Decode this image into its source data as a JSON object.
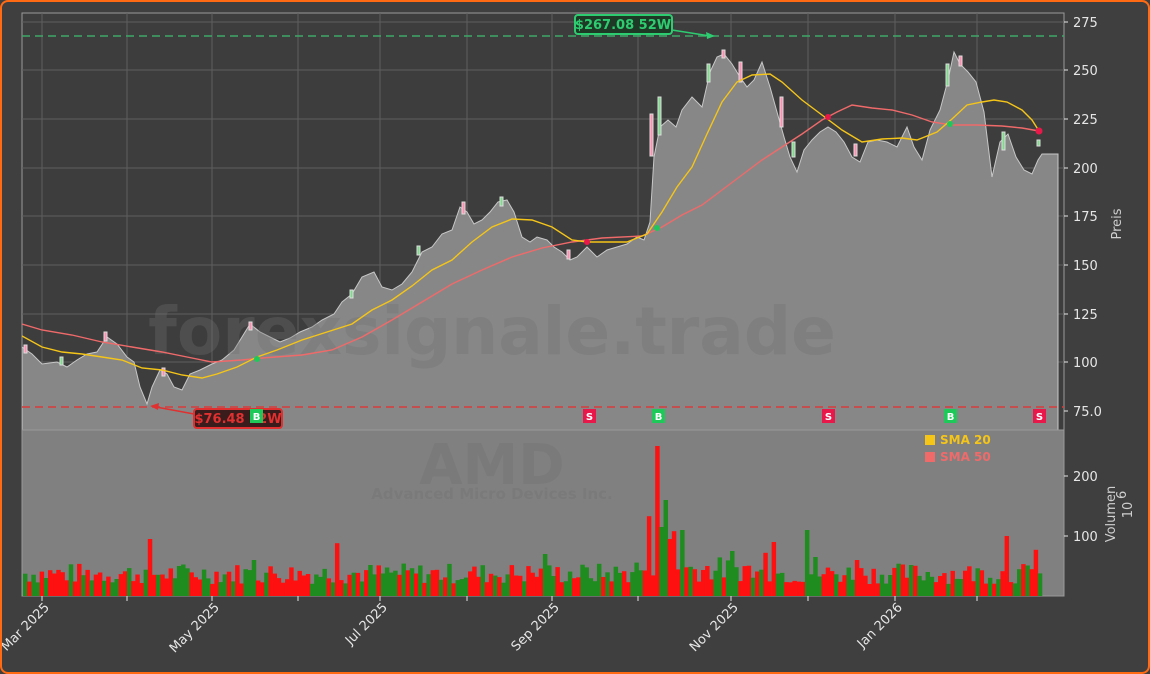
{
  "chart_data": [
    {
      "type": "candlestick+line",
      "panel": "price",
      "ylabel": "Preis",
      "ylim": [
        70,
        278
      ],
      "yticks": [
        "275",
        "250",
        "225",
        "200",
        "175",
        "150",
        "125",
        "100",
        "75.0"
      ],
      "xticks": [
        "Mar 2025",
        "May 2025",
        "Jul 2025",
        "Sep 2025",
        "Nov 2025",
        "Jan 2026"
      ],
      "grid": true,
      "annotations": [
        {
          "label": "$267.08 52W",
          "type": "52w-high",
          "value": 267.08,
          "color": "#2ecc71"
        },
        {
          "label": "$76.48 52W",
          "type": "52w-low",
          "value": 76.48,
          "color": "#e03030"
        }
      ],
      "signals": [
        {
          "label": "B",
          "position": "May 2025",
          "type": "buy"
        },
        {
          "label": "S",
          "position": "Sep 2025",
          "type": "sell"
        },
        {
          "label": "B",
          "position": "Oct 2025",
          "type": "buy"
        },
        {
          "label": "S",
          "position": "Dec 2025",
          "type": "sell"
        },
        {
          "label": "B",
          "position": "Jan 2026",
          "type": "buy"
        },
        {
          "label": "S",
          "position": "Feb 2026",
          "type": "sell"
        }
      ],
      "series": [
        {
          "name": "Close (approx.)",
          "x": [
            "2025-02-18",
            "2025-03-01",
            "2025-03-15",
            "2025-04-01",
            "2025-04-08",
            "2025-04-21",
            "2025-05-01",
            "2025-05-15",
            "2025-06-01",
            "2025-06-15",
            "2025-07-01",
            "2025-07-15",
            "2025-08-01",
            "2025-08-15",
            "2025-09-01",
            "2025-09-15",
            "2025-10-01",
            "2025-10-08",
            "2025-10-15",
            "2025-10-29",
            "2025-11-05",
            "2025-11-20",
            "2025-12-01",
            "2025-12-15",
            "2026-01-01",
            "2026-01-15",
            "2026-01-22",
            "2026-02-01",
            "2026-02-10"
          ],
          "values": [
            107,
            99,
            104,
            110,
            78,
            86,
            97,
            115,
            113,
            120,
            138,
            158,
            175,
            178,
            165,
            155,
            162,
            165,
            218,
            255,
            245,
            205,
            220,
            212,
            212,
            205,
            250,
            200,
            203
          ]
        },
        {
          "name": "SMA 20",
          "color": "#f5c518",
          "values": [
            113,
            105,
            103,
            100,
            95,
            93,
            100,
            108,
            117,
            125,
            135,
            150,
            165,
            172,
            168,
            160,
            158,
            165,
            195,
            238,
            244,
            220,
            215,
            212,
            213,
            215,
            232,
            233,
            218
          ]
        },
        {
          "name": "SMA 50",
          "color": "#f06a6a",
          "values": [
            119,
            115,
            110,
            106,
            103,
            100,
            100,
            102,
            105,
            112,
            125,
            140,
            155,
            165,
            162,
            162,
            165,
            168,
            185,
            200,
            215,
            228,
            230,
            228,
            226,
            222,
            222,
            221,
            219
          ]
        }
      ],
      "legend": [
        "SMA 20",
        "SMA 50"
      ],
      "watermark": "forexsignale.trade"
    },
    {
      "type": "bar",
      "panel": "volume",
      "ylabel": "Volumen",
      "yunit": "10^6",
      "yticks": [
        "200",
        "100"
      ],
      "ylim": [
        0,
        275
      ],
      "colors": {
        "up": "#1e8c1e",
        "down": "#ff1010"
      },
      "approx_peaks": [
        {
          "date": "2025-04-09",
          "value": 95
        },
        {
          "date": "2025-05-06",
          "value": 88
        },
        {
          "date": "2025-06-25",
          "value": 90
        },
        {
          "date": "2025-07-28",
          "value": 133
        },
        {
          "date": "2025-10-06",
          "value": 250
        },
        {
          "date": "2025-10-08",
          "value": 160
        },
        {
          "date": "2025-11-05",
          "value": 110
        },
        {
          "date": "2026-02-04",
          "value": 107
        }
      ],
      "typical_range": [
        20,
        70
      ],
      "watermark_title": "AMD",
      "watermark_subtitle": "Advanced Micro Devices Inc."
    }
  ],
  "labels": {
    "price_axis": "Preis",
    "volume_axis": "Volumen",
    "volume_unit_base": "10",
    "volume_unit_exp": "6",
    "high_label": "$267.08 52W",
    "low_label": "$76.48 52W",
    "legend_sma20": "SMA 20",
    "legend_sma50": "SMA 50",
    "watermark": "forexsignale.trade",
    "ticker": "AMD",
    "company": "Advanced Micro Devices Inc.",
    "price_ticks": [
      "275",
      "250",
      "225",
      "200",
      "175",
      "150",
      "125",
      "100",
      "75.0"
    ],
    "volume_ticks": [
      "200",
      "100"
    ],
    "date_ticks": [
      "Mar 2025",
      "May 2025",
      "Jul 2025",
      "Sep 2025",
      "Nov 2025",
      "Jan 2026"
    ],
    "signal_labels": [
      "B",
      "S",
      "B",
      "S",
      "B",
      "S"
    ]
  },
  "colors": {
    "frame_border": "#ff6a13",
    "background": "#3f3f3f",
    "panel_fill": "#808080",
    "high_line": "#2ecc71",
    "low_line": "#e03030",
    "sma20": "#f5c518",
    "sma50": "#f06a6a",
    "buy": "#1ec95a",
    "sell": "#e8194a"
  }
}
